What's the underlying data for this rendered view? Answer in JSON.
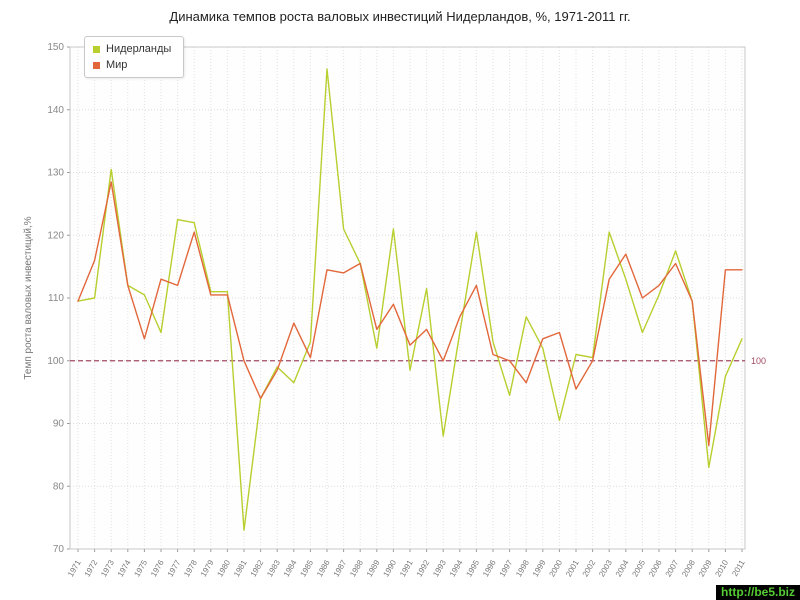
{
  "title": "Динамика темпов роста валовых инвестиций Нидерландов, %, 1971-2011 гг.",
  "watermark": {
    "text": "http://be5.biz",
    "color": "#55cc33",
    "bg": "#000000"
  },
  "chart_data": {
    "type": "line",
    "title": "Динамика темпов роста валовых инвестиций Нидерландов, %, 1971-2011 гг.",
    "xlabel": "",
    "ylabel": "Темп роста валовых инвестиций,%",
    "ylim": [
      70,
      150
    ],
    "yticks": [
      70,
      80,
      90,
      100,
      110,
      120,
      130,
      140,
      150
    ],
    "grid": true,
    "legend_position": "top-left",
    "x": [
      1971,
      1972,
      1973,
      1974,
      1975,
      1976,
      1977,
      1978,
      1979,
      1980,
      1981,
      1982,
      1983,
      1984,
      1985,
      1986,
      1987,
      1988,
      1989,
      1990,
      1991,
      1992,
      1993,
      1994,
      1995,
      1996,
      1997,
      1998,
      1999,
      2000,
      2001,
      2002,
      2003,
      2004,
      2005,
      2006,
      2007,
      2008,
      2009,
      2010,
      2011
    ],
    "series": [
      {
        "name": "Нидерланды",
        "color": "#b9ce2f",
        "values": [
          109.5,
          110,
          130.5,
          112,
          110.5,
          104.5,
          122.5,
          122,
          111,
          111,
          73,
          94,
          99,
          96.5,
          103,
          146.5,
          121,
          115.5,
          102,
          121,
          98.5,
          111.5,
          88,
          104.5,
          120.5,
          103,
          94.5,
          107,
          102,
          90.5,
          101,
          100.5,
          120.5,
          113,
          104.5,
          110.5,
          117.5,
          109.5,
          83,
          97.5,
          103.5
        ]
      },
      {
        "name": "Мир",
        "color": "#e2673b",
        "values": [
          109.5,
          116,
          128.5,
          112,
          103.5,
          113,
          112,
          120.5,
          110.5,
          110.5,
          100,
          94,
          98.5,
          106,
          100.5,
          114.5,
          114,
          115.5,
          105,
          109,
          102.5,
          105,
          100,
          107,
          112,
          101,
          100,
          96.5,
          103.5,
          104.5,
          95.5,
          100,
          113,
          117,
          110,
          112,
          115.5,
          109.5,
          86.5,
          114.5,
          114.5
        ]
      }
    ],
    "reference_line": {
      "value": 100,
      "label": "100",
      "color": "#a34a63"
    }
  }
}
